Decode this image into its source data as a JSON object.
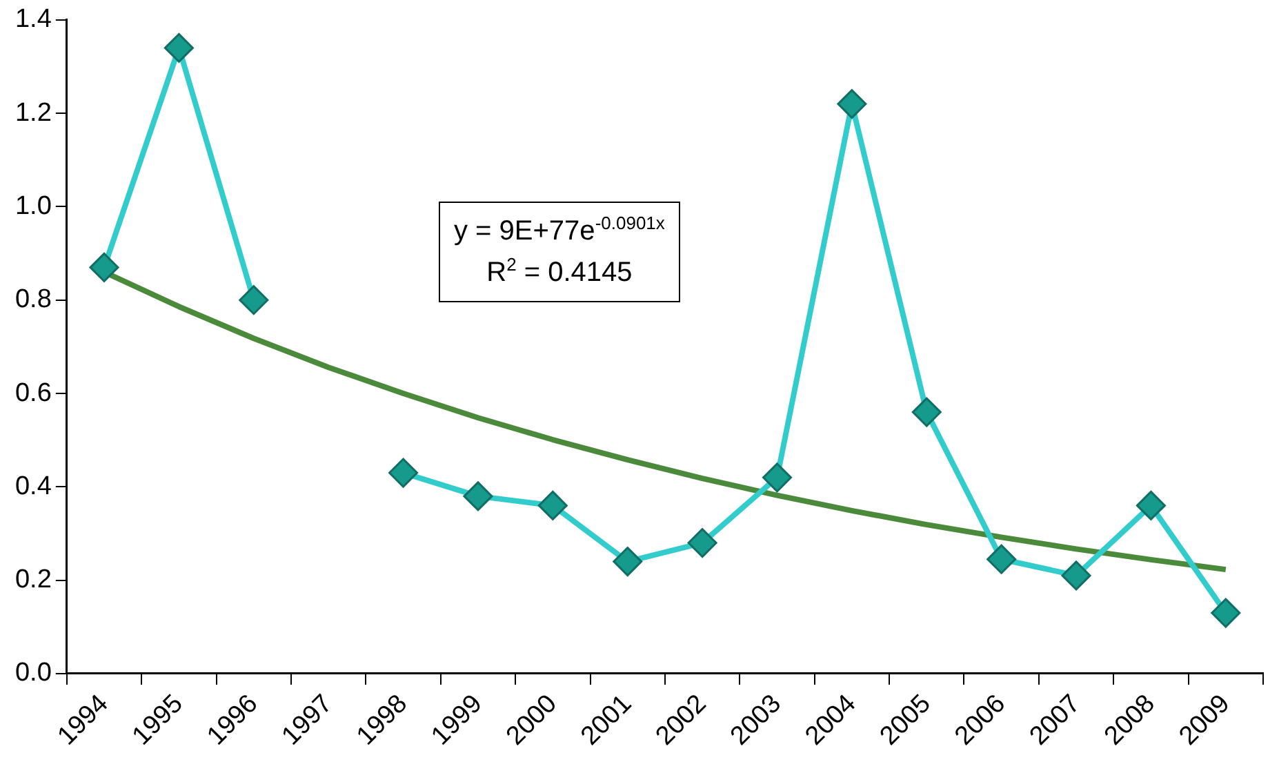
{
  "chart_data": {
    "type": "line",
    "categories": [
      "1994",
      "1995",
      "1996",
      "1997",
      "1998",
      "1999",
      "2000",
      "2001",
      "2002",
      "2003",
      "2004",
      "2005",
      "2006",
      "2007",
      "2008",
      "2009"
    ],
    "series": [
      {
        "color": "#33cccc",
        "marker": "diamond",
        "values": [
          0.87,
          1.34,
          0.8,
          null,
          0.43,
          0.38,
          0.36,
          0.24,
          0.28,
          0.42,
          1.22,
          0.56,
          0.245,
          0.21,
          0.36,
          0.13
        ]
      },
      {
        "type": "line",
        "color": "#4a8a3a",
        "marker": "none",
        "values": [
          0.86,
          0.786,
          0.718,
          0.656,
          0.6,
          0.548,
          0.501,
          0.458,
          0.418,
          0.382,
          0.349,
          0.319,
          0.292,
          0.267,
          0.244,
          0.223
        ]
      }
    ],
    "ylim": [
      0,
      1.4
    ],
    "yticks": [
      {
        "value": 0,
        "label": "0.0"
      },
      {
        "value": 0.2,
        "label": "0.2"
      },
      {
        "value": 0.4,
        "label": "0.4"
      },
      {
        "value": 0.6,
        "label": "0.6"
      },
      {
        "value": 0.8,
        "label": "0.8"
      },
      {
        "value": 1,
        "label": "1.0"
      },
      {
        "value": 1.2,
        "label": "1.2"
      },
      {
        "value": 1.4,
        "label": "1.4"
      }
    ],
    "grid": false,
    "legend": false,
    "annotations": [
      "y = 9E+77e$^{-0.0901x}$",
      "R$^{2}$ = 0.4145"
    ]
  }
}
